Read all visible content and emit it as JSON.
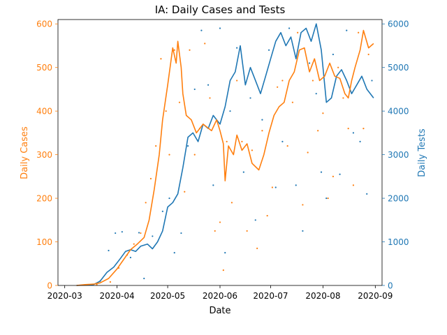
{
  "chart_data": {
    "type": "line",
    "title": "IA: Daily Cases and Tests",
    "xlabel": "Date",
    "ylabel_left": "Daily Cases",
    "ylabel_right": "Daily Tests",
    "x_ticks": [
      "2020-03",
      "2020-04",
      "2020-05",
      "2020-06",
      "2020-07",
      "2020-08",
      "2020-09"
    ],
    "y_left_ticks": [
      "0",
      "100",
      "200",
      "300",
      "400",
      "500",
      "600"
    ],
    "y_right_ticks": [
      "0",
      "1000",
      "2000",
      "3000",
      "4000",
      "5000",
      "6000"
    ],
    "x_range": [
      "2020-02-26",
      "2020-09-05"
    ],
    "ylim_left": [
      0,
      610
    ],
    "ylim_right": [
      0,
      6100
    ],
    "grid": false,
    "colors": {
      "cases": "#ff7f0e",
      "tests": "#1f77b4"
    },
    "series": [
      {
        "axis": "left",
        "points": [
          [
            "2020-03-08",
            0
          ],
          [
            "2020-03-13",
            2
          ],
          [
            "2020-03-18",
            3
          ],
          [
            "2020-03-22",
            6
          ],
          [
            "2020-03-27",
            16
          ],
          [
            "2020-04-01",
            38
          ],
          [
            "2020-04-05",
            60
          ],
          [
            "2020-04-09",
            82
          ],
          [
            "2020-04-13",
            95
          ],
          [
            "2020-04-17",
            110
          ],
          [
            "2020-04-20",
            150
          ],
          [
            "2020-04-23",
            220
          ],
          [
            "2020-04-26",
            300
          ],
          [
            "2020-04-28",
            380
          ],
          [
            "2020-05-01",
            460
          ],
          [
            "2020-05-04",
            545
          ],
          [
            "2020-05-06",
            510
          ],
          [
            "2020-05-07",
            560
          ],
          [
            "2020-05-09",
            500
          ],
          [
            "2020-05-10",
            440
          ],
          [
            "2020-05-12",
            390
          ],
          [
            "2020-05-15",
            380
          ],
          [
            "2020-05-18",
            350
          ],
          [
            "2020-05-22",
            370
          ],
          [
            "2020-05-27",
            355
          ],
          [
            "2020-05-30",
            380
          ],
          [
            "2020-06-01",
            355
          ],
          [
            "2020-06-03",
            325
          ],
          [
            "2020-06-04",
            240
          ],
          [
            "2020-06-06",
            320
          ],
          [
            "2020-06-09",
            300
          ],
          [
            "2020-06-11",
            345
          ],
          [
            "2020-06-14",
            310
          ],
          [
            "2020-06-17",
            325
          ],
          [
            "2020-06-20",
            280
          ],
          [
            "2020-06-24",
            265
          ],
          [
            "2020-06-27",
            300
          ],
          [
            "2020-06-30",
            350
          ],
          [
            "2020-07-03",
            390
          ],
          [
            "2020-07-06",
            410
          ],
          [
            "2020-07-09",
            420
          ],
          [
            "2020-07-12",
            470
          ],
          [
            "2020-07-15",
            490
          ],
          [
            "2020-07-18",
            540
          ],
          [
            "2020-07-21",
            545
          ],
          [
            "2020-07-24",
            490
          ],
          [
            "2020-07-27",
            520
          ],
          [
            "2020-07-30",
            470
          ],
          [
            "2020-08-02",
            480
          ],
          [
            "2020-08-05",
            510
          ],
          [
            "2020-08-08",
            480
          ],
          [
            "2020-08-11",
            475
          ],
          [
            "2020-08-14",
            440
          ],
          [
            "2020-08-16",
            430
          ],
          [
            "2020-08-18",
            470
          ],
          [
            "2020-08-20",
            500
          ],
          [
            "2020-08-23",
            540
          ],
          [
            "2020-08-25",
            585
          ],
          [
            "2020-08-28",
            545
          ],
          [
            "2020-08-31",
            555
          ]
        ]
      },
      {
        "axis": "right",
        "points": [
          [
            "2020-03-08",
            0
          ],
          [
            "2020-03-13",
            10
          ],
          [
            "2020-03-18",
            20
          ],
          [
            "2020-03-22",
            100
          ],
          [
            "2020-03-26",
            300
          ],
          [
            "2020-03-30",
            420
          ],
          [
            "2020-04-03",
            620
          ],
          [
            "2020-04-06",
            780
          ],
          [
            "2020-04-09",
            820
          ],
          [
            "2020-04-12",
            780
          ],
          [
            "2020-04-15",
            900
          ],
          [
            "2020-04-19",
            950
          ],
          [
            "2020-04-22",
            840
          ],
          [
            "2020-04-25",
            1000
          ],
          [
            "2020-04-28",
            1250
          ],
          [
            "2020-05-01",
            1800
          ],
          [
            "2020-05-04",
            1900
          ],
          [
            "2020-05-07",
            2100
          ],
          [
            "2020-05-10",
            2700
          ],
          [
            "2020-05-13",
            3400
          ],
          [
            "2020-05-16",
            3500
          ],
          [
            "2020-05-19",
            3300
          ],
          [
            "2020-05-22",
            3700
          ],
          [
            "2020-05-25",
            3600
          ],
          [
            "2020-05-28",
            3900
          ],
          [
            "2020-06-01",
            3700
          ],
          [
            "2020-06-04",
            4100
          ],
          [
            "2020-06-07",
            4700
          ],
          [
            "2020-06-10",
            4900
          ],
          [
            "2020-06-13",
            5500
          ],
          [
            "2020-06-16",
            4600
          ],
          [
            "2020-06-19",
            5000
          ],
          [
            "2020-06-22",
            4700
          ],
          [
            "2020-06-25",
            4400
          ],
          [
            "2020-06-28",
            4800
          ],
          [
            "2020-07-01",
            5200
          ],
          [
            "2020-07-04",
            5600
          ],
          [
            "2020-07-07",
            5800
          ],
          [
            "2020-07-10",
            5500
          ],
          [
            "2020-07-13",
            5700
          ],
          [
            "2020-07-16",
            5200
          ],
          [
            "2020-07-19",
            5800
          ],
          [
            "2020-07-22",
            5900
          ],
          [
            "2020-07-25",
            5600
          ],
          [
            "2020-07-28",
            6000
          ],
          [
            "2020-07-31",
            5400
          ],
          [
            "2020-08-03",
            4200
          ],
          [
            "2020-08-06",
            4300
          ],
          [
            "2020-08-09",
            4800
          ],
          [
            "2020-08-12",
            4950
          ],
          [
            "2020-08-15",
            4700
          ],
          [
            "2020-08-18",
            4400
          ],
          [
            "2020-08-21",
            4600
          ],
          [
            "2020-08-24",
            4800
          ],
          [
            "2020-08-27",
            4500
          ],
          [
            "2020-08-31",
            4300
          ]
        ]
      }
    ],
    "scatter_left": [
      [
        "2020-03-20",
        2
      ],
      [
        "2020-03-28",
        8
      ],
      [
        "2020-04-02",
        40
      ],
      [
        "2020-04-07",
        70
      ],
      [
        "2020-04-11",
        95
      ],
      [
        "2020-04-15",
        120
      ],
      [
        "2020-04-18",
        190
      ],
      [
        "2020-04-21",
        245
      ],
      [
        "2020-04-24",
        320
      ],
      [
        "2020-04-27",
        520
      ],
      [
        "2020-04-30",
        400
      ],
      [
        "2020-05-02",
        300
      ],
      [
        "2020-05-05",
        540
      ],
      [
        "2020-05-08",
        420
      ],
      [
        "2020-05-11",
        215
      ],
      [
        "2020-05-14",
        540
      ],
      [
        "2020-05-17",
        300
      ],
      [
        "2020-05-20",
        360
      ],
      [
        "2020-05-23",
        555
      ],
      [
        "2020-05-26",
        430
      ],
      [
        "2020-05-29",
        125
      ],
      [
        "2020-06-01",
        145
      ],
      [
        "2020-06-03",
        35
      ],
      [
        "2020-06-05",
        330
      ],
      [
        "2020-06-08",
        190
      ],
      [
        "2020-06-11",
        470
      ],
      [
        "2020-06-14",
        330
      ],
      [
        "2020-06-17",
        125
      ],
      [
        "2020-06-20",
        310
      ],
      [
        "2020-06-23",
        85
      ],
      [
        "2020-06-26",
        355
      ],
      [
        "2020-06-29",
        160
      ],
      [
        "2020-07-02",
        225
      ],
      [
        "2020-07-05",
        455
      ],
      [
        "2020-07-08",
        470
      ],
      [
        "2020-07-11",
        320
      ],
      [
        "2020-07-14",
        420
      ],
      [
        "2020-07-17",
        580
      ],
      [
        "2020-07-20",
        185
      ],
      [
        "2020-07-23",
        305
      ],
      [
        "2020-07-26",
        470
      ],
      [
        "2020-07-29",
        355
      ],
      [
        "2020-08-01",
        395
      ],
      [
        "2020-08-04",
        200
      ],
      [
        "2020-08-07",
        250
      ],
      [
        "2020-08-10",
        500
      ],
      [
        "2020-08-13",
        430
      ],
      [
        "2020-08-16",
        360
      ],
      [
        "2020-08-19",
        230
      ],
      [
        "2020-08-22",
        580
      ],
      [
        "2020-08-25",
        360
      ],
      [
        "2020-08-28",
        530
      ]
    ],
    "scatter_right": [
      [
        "2020-03-22",
        100
      ],
      [
        "2020-03-27",
        800
      ],
      [
        "2020-03-31",
        1200
      ],
      [
        "2020-04-04",
        1230
      ],
      [
        "2020-04-09",
        640
      ],
      [
        "2020-04-14",
        1210
      ],
      [
        "2020-04-17",
        160
      ],
      [
        "2020-04-22",
        1130
      ],
      [
        "2020-04-28",
        1700
      ],
      [
        "2020-05-02",
        2000
      ],
      [
        "2020-05-05",
        750
      ],
      [
        "2020-05-09",
        1200
      ],
      [
        "2020-05-13",
        3200
      ],
      [
        "2020-05-17",
        4500
      ],
      [
        "2020-05-21",
        5850
      ],
      [
        "2020-05-25",
        4600
      ],
      [
        "2020-05-28",
        2300
      ],
      [
        "2020-06-01",
        5900
      ],
      [
        "2020-06-04",
        750
      ],
      [
        "2020-06-07",
        4000
      ],
      [
        "2020-06-11",
        5450
      ],
      [
        "2020-06-15",
        2600
      ],
      [
        "2020-06-19",
        4300
      ],
      [
        "2020-06-22",
        1500
      ],
      [
        "2020-06-26",
        3800
      ],
      [
        "2020-06-30",
        5400
      ],
      [
        "2020-07-04",
        2250
      ],
      [
        "2020-07-08",
        3300
      ],
      [
        "2020-07-12",
        5900
      ],
      [
        "2020-07-16",
        2300
      ],
      [
        "2020-07-20",
        1250
      ],
      [
        "2020-07-24",
        5100
      ],
      [
        "2020-07-28",
        4400
      ],
      [
        "2020-07-31",
        2600
      ],
      [
        "2020-08-03",
        2000
      ],
      [
        "2020-08-07",
        5300
      ],
      [
        "2020-08-11",
        2550
      ],
      [
        "2020-08-15",
        5850
      ],
      [
        "2020-08-19",
        3500
      ],
      [
        "2020-08-23",
        3300
      ],
      [
        "2020-08-27",
        2100
      ],
      [
        "2020-08-30",
        4700
      ]
    ]
  }
}
